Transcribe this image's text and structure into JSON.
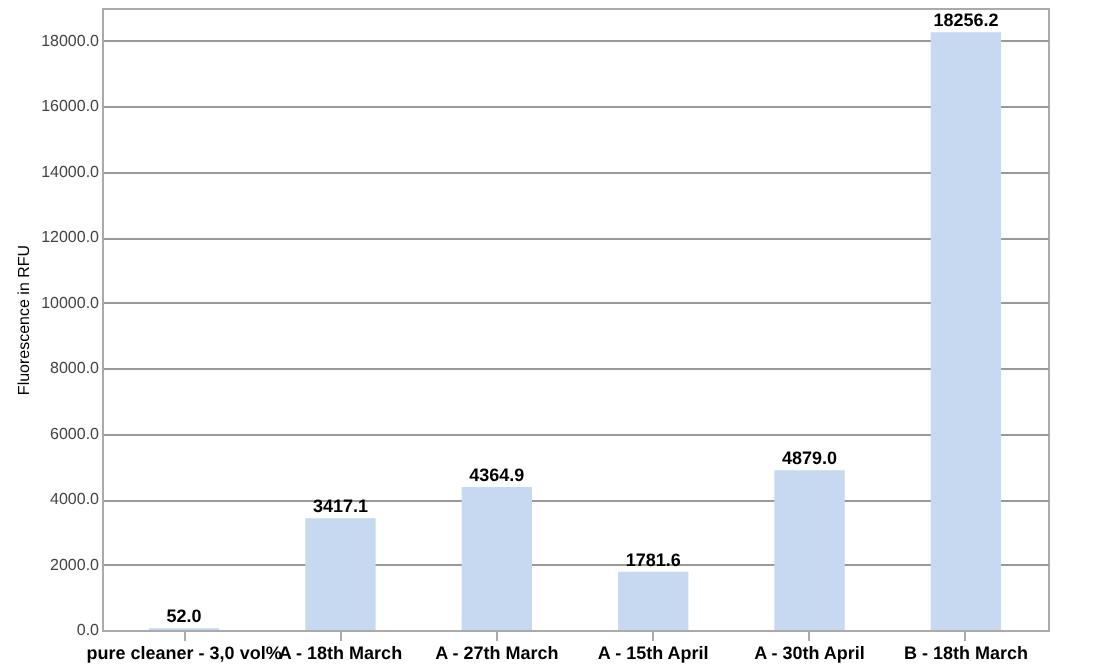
{
  "chart_data": {
    "type": "bar",
    "ylabel": "Fluorescence in RFU",
    "categories": [
      "pure cleaner - 3,0 vol%",
      "A - 18th March",
      "A - 27th March",
      "A - 15th April",
      "A - 30th April",
      "B - 18th March"
    ],
    "values": [
      52.0,
      3417.1,
      4364.9,
      1781.6,
      4879.0,
      18256.2
    ],
    "color": "#c6d9f1",
    "value_labels": [
      "52.0",
      "3417.1",
      "4364.9",
      "1781.6",
      "4879.0",
      "18256.2"
    ],
    "grid": "y",
    "ylim": [
      0,
      19000
    ],
    "yticks": [
      {
        "value": 0,
        "label": "0.0"
      },
      {
        "value": 2000,
        "label": "2000.0"
      },
      {
        "value": 4000,
        "label": "4000.0"
      },
      {
        "value": 6000,
        "label": "6000.0"
      },
      {
        "value": 8000,
        "label": "8000.0"
      },
      {
        "value": 10000,
        "label": "10000.0"
      },
      {
        "value": 12000,
        "label": "12000.0"
      },
      {
        "value": 14000,
        "label": "14000.0"
      },
      {
        "value": 16000,
        "label": "16000.0"
      },
      {
        "value": 18000,
        "label": "18000.0"
      }
    ]
  }
}
